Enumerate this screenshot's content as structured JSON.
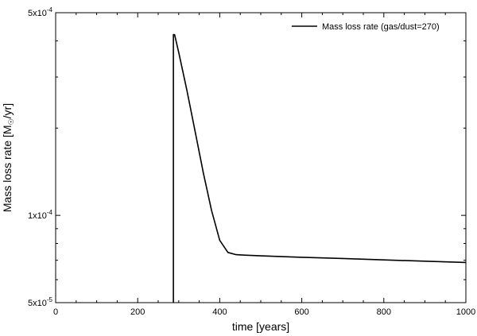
{
  "chart_data": {
    "type": "line",
    "xlabel": "time [years]",
    "ylabel_parts": {
      "prefix": "Mass loss rate [M",
      "suffix": "/yr]"
    },
    "yscale": "log",
    "xlim": [
      0,
      1000
    ],
    "ylim": [
      5e-05,
      0.0005
    ],
    "grid": false,
    "legend_position": "top-right",
    "x_ticks": [
      0,
      200,
      400,
      600,
      800,
      1000
    ],
    "x_tick_labels": [
      "0",
      "200",
      "400",
      "600",
      "800",
      "1000"
    ],
    "y_ticks": [
      {
        "value": 0.0005,
        "mantissa": "5x10",
        "exponent": "-4"
      },
      {
        "value": 0.0001,
        "mantissa": "1x10",
        "exponent": "-4"
      },
      {
        "value": 5e-05,
        "mantissa": "5x10",
        "exponent": "-5"
      }
    ],
    "series": [
      {
        "name": "Mass loss rate (gas/dust=270)",
        "color": "#000000",
        "x": [
          287,
          287,
          290,
          300,
          320,
          340,
          360,
          380,
          400,
          420,
          440,
          460,
          500,
          600,
          700,
          800,
          900,
          1000
        ],
        "y": [
          5e-05,
          0.00042,
          0.00042,
          0.000365,
          0.00027,
          0.000195,
          0.00014,
          0.000104,
          8.2e-05,
          7.45e-05,
          7.32e-05,
          7.29e-05,
          7.25e-05,
          7.17e-05,
          7.1e-05,
          7.02e-05,
          6.95e-05,
          6.88e-05
        ]
      }
    ]
  }
}
